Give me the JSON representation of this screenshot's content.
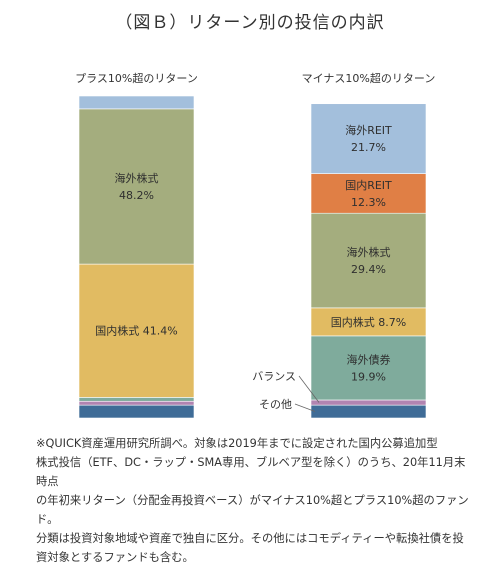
{
  "title": "（図Ｂ）リターン別の投信の内訳",
  "chart_data": {
    "type": "bar",
    "stacked": true,
    "percent_stacked": true,
    "categories": [
      "プラス10%超のリターン",
      "マイナス10%超のリターン"
    ],
    "series": [
      {
        "name": "その他",
        "values": [
          4.0,
          4.0
        ],
        "color": "#3f6c97",
        "labels": [
          "",
          ""
        ]
      },
      {
        "name": "バランス",
        "values": [
          1.2,
          1.6
        ],
        "color": "#b184b1",
        "labels": [
          "",
          ""
        ]
      },
      {
        "name": "海外債券",
        "values": [
          1.2,
          19.9
        ],
        "color": "#7fab9c",
        "labels": [
          "",
          "海外債券|19.9%"
        ]
      },
      {
        "name": "国内株式",
        "values": [
          41.4,
          8.7
        ],
        "color": "#e1bb62",
        "labels": [
          "国内株式 41.4%",
          "国内株式 8.7%"
        ]
      },
      {
        "name": "海外株式",
        "values": [
          48.2,
          29.4
        ],
        "color": "#a4ad7e",
        "labels": [
          "海外株式|48.2%",
          "海外株式|29.4%"
        ]
      },
      {
        "name": "国内REIT",
        "values": [
          0.0,
          12.3
        ],
        "color": "#e07f45",
        "labels": [
          "",
          "国内REIT|12.3%"
        ]
      },
      {
        "name": "海外REIT",
        "values": [
          4.0,
          21.7
        ],
        "color": "#a3bfdc",
        "labels": [
          "",
          "海外REIT|21.7%"
        ]
      }
    ],
    "callouts": [
      "バランス",
      "その他"
    ],
    "ylim": [
      0,
      100
    ],
    "grid": false,
    "legend": "none"
  },
  "footnote": [
    "※QUICK資産運用研究所調べ。対象は2019年までに設定された国内公募追加型",
    "株式投信（ETF、DC・ラップ・SMA専用、ブルベア型を除く）のうち、20年11月末時点",
    "の年初来リターン（分配金再投資ベース）がマイナス10%超とプラス10%超のファンド。",
    "分類は投資対象地域や資産で独自に区分。その他にはコモディティーや転換社債を投",
    "資対象とするファンドも含む。"
  ]
}
